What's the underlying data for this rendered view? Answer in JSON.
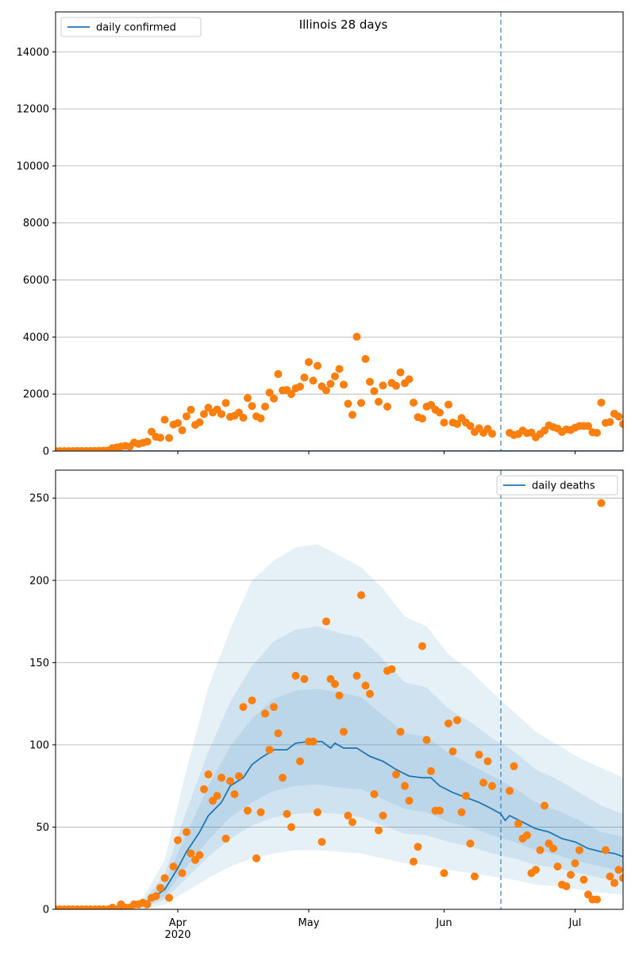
{
  "chart_data": [
    {
      "type": "scatter-line",
      "title": "Illinois 28 days",
      "legend": "upper left",
      "xlim": [
        0,
        130
      ],
      "xticks": [
        28,
        58,
        89,
        119
      ],
      "ylim": [
        0,
        15400
      ],
      "yticks": [
        0,
        2000,
        4000,
        6000,
        8000,
        10000,
        12000,
        14000
      ],
      "grid": true,
      "vline": {
        "x": 102,
        "color": "#1f77b4"
      },
      "series": [
        {
          "name": "daily confirmed",
          "kind": "line",
          "color": "#1f77b4",
          "x": [
            0,
            130
          ],
          "values": [
            0,
            0
          ]
        },
        {
          "kind": "points",
          "color": "#ff7f0e",
          "x": [
            0,
            1,
            2,
            3,
            4,
            5,
            6,
            7,
            8,
            9,
            10,
            11,
            12,
            13,
            14,
            15,
            16,
            17,
            18,
            19,
            20,
            21,
            22,
            23,
            24,
            25,
            26,
            27,
            28,
            29,
            30,
            31,
            32,
            33,
            34,
            35,
            36,
            37,
            38,
            39,
            40,
            41,
            42,
            43,
            44,
            45,
            46,
            47,
            48,
            49,
            50,
            51,
            52,
            53,
            54,
            55,
            56,
            57,
            58,
            59,
            60,
            61,
            62,
            63,
            64,
            65,
            66,
            67,
            68,
            69,
            70,
            71,
            72,
            73,
            74,
            75,
            76,
            77,
            78,
            79,
            80,
            81,
            82,
            83,
            84,
            85,
            86,
            87,
            88,
            89,
            90,
            91,
            92,
            93,
            94,
            95,
            96,
            97,
            98,
            99,
            100,
            104,
            105,
            106,
            107,
            108,
            109,
            110,
            111,
            112,
            113,
            114,
            115,
            116,
            117,
            118,
            119,
            120,
            121,
            122,
            123,
            124,
            125,
            126,
            127,
            128,
            129,
            130
          ],
          "values": [
            0,
            0,
            0,
            0,
            1,
            2,
            4,
            5,
            3,
            6,
            10,
            14,
            20,
            100,
            130,
            160,
            180,
            160,
            300,
            250,
            290,
            330,
            680,
            500,
            470,
            1100,
            460,
            930,
            980,
            730,
            1220,
            1450,
            920,
            1010,
            1300,
            1520,
            1350,
            1460,
            1300,
            1690,
            1200,
            1240,
            1350,
            1170,
            1860,
            1580,
            1220,
            1150,
            1560,
            2050,
            1840,
            2700,
            2130,
            2140,
            2000,
            2200,
            2260,
            2580,
            3120,
            2470,
            2990,
            2270,
            2130,
            2360,
            2620,
            2880,
            2330,
            1660,
            1270,
            4010,
            1690,
            3230,
            2430,
            2100,
            1730,
            2300,
            1560,
            2390,
            2290,
            2760,
            2380,
            2520,
            1700,
            1190,
            1140,
            1560,
            1620,
            1450,
            1350,
            1000,
            1630,
            1000,
            950,
            1160,
            1000,
            880,
            670,
            800,
            640,
            780,
            610,
            640,
            560,
            600,
            720,
            630,
            650,
            480,
            600,
            720,
            900,
            840,
            790,
            670,
            760,
            740,
            820,
            880,
            880,
            880,
            660,
            640,
            1700,
            990,
            1020,
            1310,
            1210,
            950
          ]
        }
      ]
    },
    {
      "type": "scatter-line",
      "legend": "upper right",
      "xlim": [
        0,
        130
      ],
      "xticks": [
        {
          "value": 28,
          "label": "Apr\n2020"
        },
        {
          "value": 58,
          "label": "May"
        },
        {
          "value": 89,
          "label": "Jun"
        },
        {
          "value": 119,
          "label": "Jul"
        }
      ],
      "ylim": [
        0,
        267
      ],
      "yticks": [
        0,
        50,
        100,
        150,
        200,
        250
      ],
      "grid": true,
      "vline": {
        "x": 102,
        "color": "#1f77b4"
      },
      "bands": {
        "color": "#1f77b4",
        "x": [
          0,
          5,
          10,
          15,
          20,
          25,
          30,
          35,
          40,
          45,
          50,
          55,
          60,
          65,
          70,
          75,
          80,
          85,
          90,
          95,
          100,
          105,
          110,
          115,
          120,
          125,
          130
        ],
        "levels": [
          {
            "lower": [
              0,
              0,
              0,
              0,
              0,
              3,
              11,
              19,
              26,
              31,
              34,
              36,
              36,
              35,
              34,
              31,
              28,
              27,
              24,
              22,
              20,
              18,
              15,
              14,
              12,
              10,
              9
            ],
            "upper": [
              0,
              0,
              0,
              2,
              7,
              30,
              85,
              135,
              170,
              200,
              212,
              220,
              222,
              215,
              208,
              195,
              178,
              172,
              155,
              145,
              132,
              120,
              108,
              100,
              92,
              86,
              80
            ]
          },
          {
            "lower": [
              0,
              0,
              0,
              0,
              1,
              6,
              19,
              32,
              43,
              51,
              56,
              58,
              59,
              58,
              56,
              51,
              46,
              45,
              41,
              38,
              34,
              31,
              27,
              25,
              22,
              19,
              17
            ],
            "upper": [
              0,
              0,
              0,
              1,
              5,
              21,
              60,
              96,
              126,
              148,
              163,
              170,
              172,
              168,
              165,
              152,
              138,
              135,
              122,
              114,
              104,
              96,
              85,
              79,
              71,
              63,
              58
            ]
          },
          {
            "lower": [
              0,
              0,
              0,
              0,
              2,
              8,
              26,
              42,
              56,
              65,
              72,
              75,
              76,
              74,
              73,
              67,
              61,
              59,
              53,
              50,
              45,
              41,
              36,
              33,
              29,
              26,
              23
            ],
            "upper": [
              0,
              0,
              0,
              1,
              4,
              16,
              46,
              75,
              99,
              116,
              128,
              133,
              134,
              132,
              129,
              118,
              107,
              105,
              95,
              88,
              81,
              74,
              65,
              60,
              54,
              47,
              44
            ]
          }
        ]
      },
      "series": [
        {
          "name": "daily deaths",
          "kind": "line",
          "color": "#1f77b4",
          "x": [
            0,
            5,
            10,
            15,
            20,
            25,
            28,
            30,
            33,
            35,
            38,
            40,
            43,
            45,
            47,
            50,
            53,
            55,
            58,
            61,
            63,
            64,
            66,
            69,
            72,
            75,
            78,
            81,
            84,
            86,
            88,
            91,
            94,
            97,
            100,
            102,
            103,
            104,
            107,
            110,
            113,
            116,
            119,
            122,
            125,
            128,
            130
          ],
          "values": [
            0,
            0,
            0,
            0.5,
            3,
            12,
            25,
            35,
            47,
            57,
            65,
            75,
            80,
            88,
            92,
            97,
            97,
            101,
            102,
            102,
            98,
            101,
            98,
            98,
            93,
            90,
            85,
            81,
            80,
            80,
            75,
            71,
            68,
            65,
            61,
            58,
            54,
            57,
            53,
            49,
            47,
            43,
            41,
            37,
            35,
            34,
            32
          ]
        },
        {
          "kind": "points",
          "color": "#ff7f0e",
          "x": [
            0,
            1,
            2,
            3,
            4,
            5,
            6,
            7,
            8,
            9,
            10,
            11,
            12,
            13,
            14,
            15,
            16,
            17,
            18,
            19,
            20,
            21,
            22,
            23,
            24,
            25,
            26,
            27,
            28,
            29,
            30,
            31,
            32,
            33,
            34,
            35,
            36,
            37,
            38,
            39,
            40,
            41,
            42,
            43,
            44,
            45,
            46,
            47,
            48,
            49,
            50,
            51,
            52,
            53,
            54,
            55,
            56,
            57,
            58,
            59,
            60,
            61,
            62,
            63,
            64,
            65,
            66,
            67,
            68,
            69,
            70,
            71,
            72,
            73,
            74,
            75,
            76,
            77,
            78,
            79,
            80,
            81,
            82,
            83,
            84,
            85,
            86,
            87,
            88,
            89,
            90,
            91,
            92,
            93,
            94,
            95,
            96,
            97,
            98,
            99,
            100,
            104,
            105,
            106,
            107,
            108,
            109,
            110,
            111,
            112,
            113,
            114,
            115,
            116,
            117,
            118,
            119,
            120,
            121,
            122,
            123,
            124,
            125,
            126,
            127,
            128,
            129,
            130
          ],
          "values": [
            0,
            0,
            0,
            0,
            0,
            0,
            0,
            0,
            0,
            0,
            0,
            0,
            0,
            1,
            0,
            3,
            1,
            1,
            3,
            3,
            4,
            3,
            7,
            8,
            13,
            19,
            7,
            26,
            42,
            22,
            47,
            34,
            30,
            33,
            73,
            82,
            66,
            69,
            80,
            43,
            78,
            70,
            81,
            123,
            60,
            127,
            31,
            59,
            119,
            97,
            123,
            107,
            80,
            58,
            50,
            142,
            90,
            140,
            102,
            102,
            59,
            41,
            175,
            140,
            137,
            130,
            108,
            57,
            53,
            142,
            191,
            136,
            131,
            70,
            48,
            57,
            145,
            146,
            82,
            108,
            75,
            66,
            29,
            38,
            160,
            103,
            84,
            60,
            60,
            22,
            113,
            96,
            115,
            59,
            69,
            40,
            20,
            94,
            77,
            90,
            75,
            72,
            87,
            52,
            43,
            45,
            22,
            24,
            36,
            63,
            40,
            37,
            26,
            15,
            14,
            21,
            28,
            36,
            18,
            9,
            6,
            6,
            247,
            36,
            20,
            16,
            24,
            19
          ]
        }
      ]
    }
  ]
}
